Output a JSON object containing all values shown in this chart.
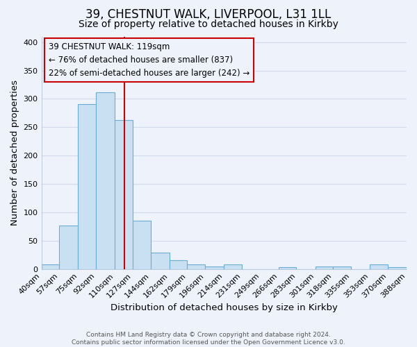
{
  "title": "39, CHESTNUT WALK, LIVERPOOL, L31 1LL",
  "subtitle": "Size of property relative to detached houses in Kirkby",
  "xlabel": "Distribution of detached houses by size in Kirkby",
  "ylabel": "Number of detached properties",
  "bin_edges": [
    40,
    57,
    75,
    92,
    110,
    127,
    144,
    162,
    179,
    196,
    214,
    231,
    249,
    266,
    283,
    301,
    318,
    335,
    353,
    370,
    388
  ],
  "bin_counts": [
    8,
    76,
    291,
    312,
    263,
    85,
    29,
    16,
    8,
    5,
    8,
    0,
    0,
    3,
    0,
    4,
    4,
    0,
    8,
    3
  ],
  "bar_facecolor": "#c9dff2",
  "bar_edgecolor": "#6aaed6",
  "vline_x": 119,
  "vline_color": "#cc0000",
  "annotation_text": "39 CHESTNUT WALK: 119sqm\n← 76% of detached houses are smaller (837)\n22% of semi-detached houses are larger (242) →",
  "annotation_box_edgecolor": "#cc0000",
  "ylim": [
    0,
    410
  ],
  "yticks": [
    0,
    50,
    100,
    150,
    200,
    250,
    300,
    350,
    400
  ],
  "tick_labels": [
    "40sqm",
    "57sqm",
    "75sqm",
    "92sqm",
    "110sqm",
    "127sqm",
    "144sqm",
    "162sqm",
    "179sqm",
    "196sqm",
    "214sqm",
    "231sqm",
    "249sqm",
    "266sqm",
    "283sqm",
    "301sqm",
    "318sqm",
    "335sqm",
    "353sqm",
    "370sqm",
    "388sqm"
  ],
  "footer_text": "Contains HM Land Registry data © Crown copyright and database right 2024.\nContains public sector information licensed under the Open Government Licence v3.0.",
  "bg_color": "#edf2fb",
  "grid_color": "#d0daea",
  "title_fontsize": 12,
  "subtitle_fontsize": 10,
  "label_fontsize": 9.5,
  "tick_fontsize": 8
}
